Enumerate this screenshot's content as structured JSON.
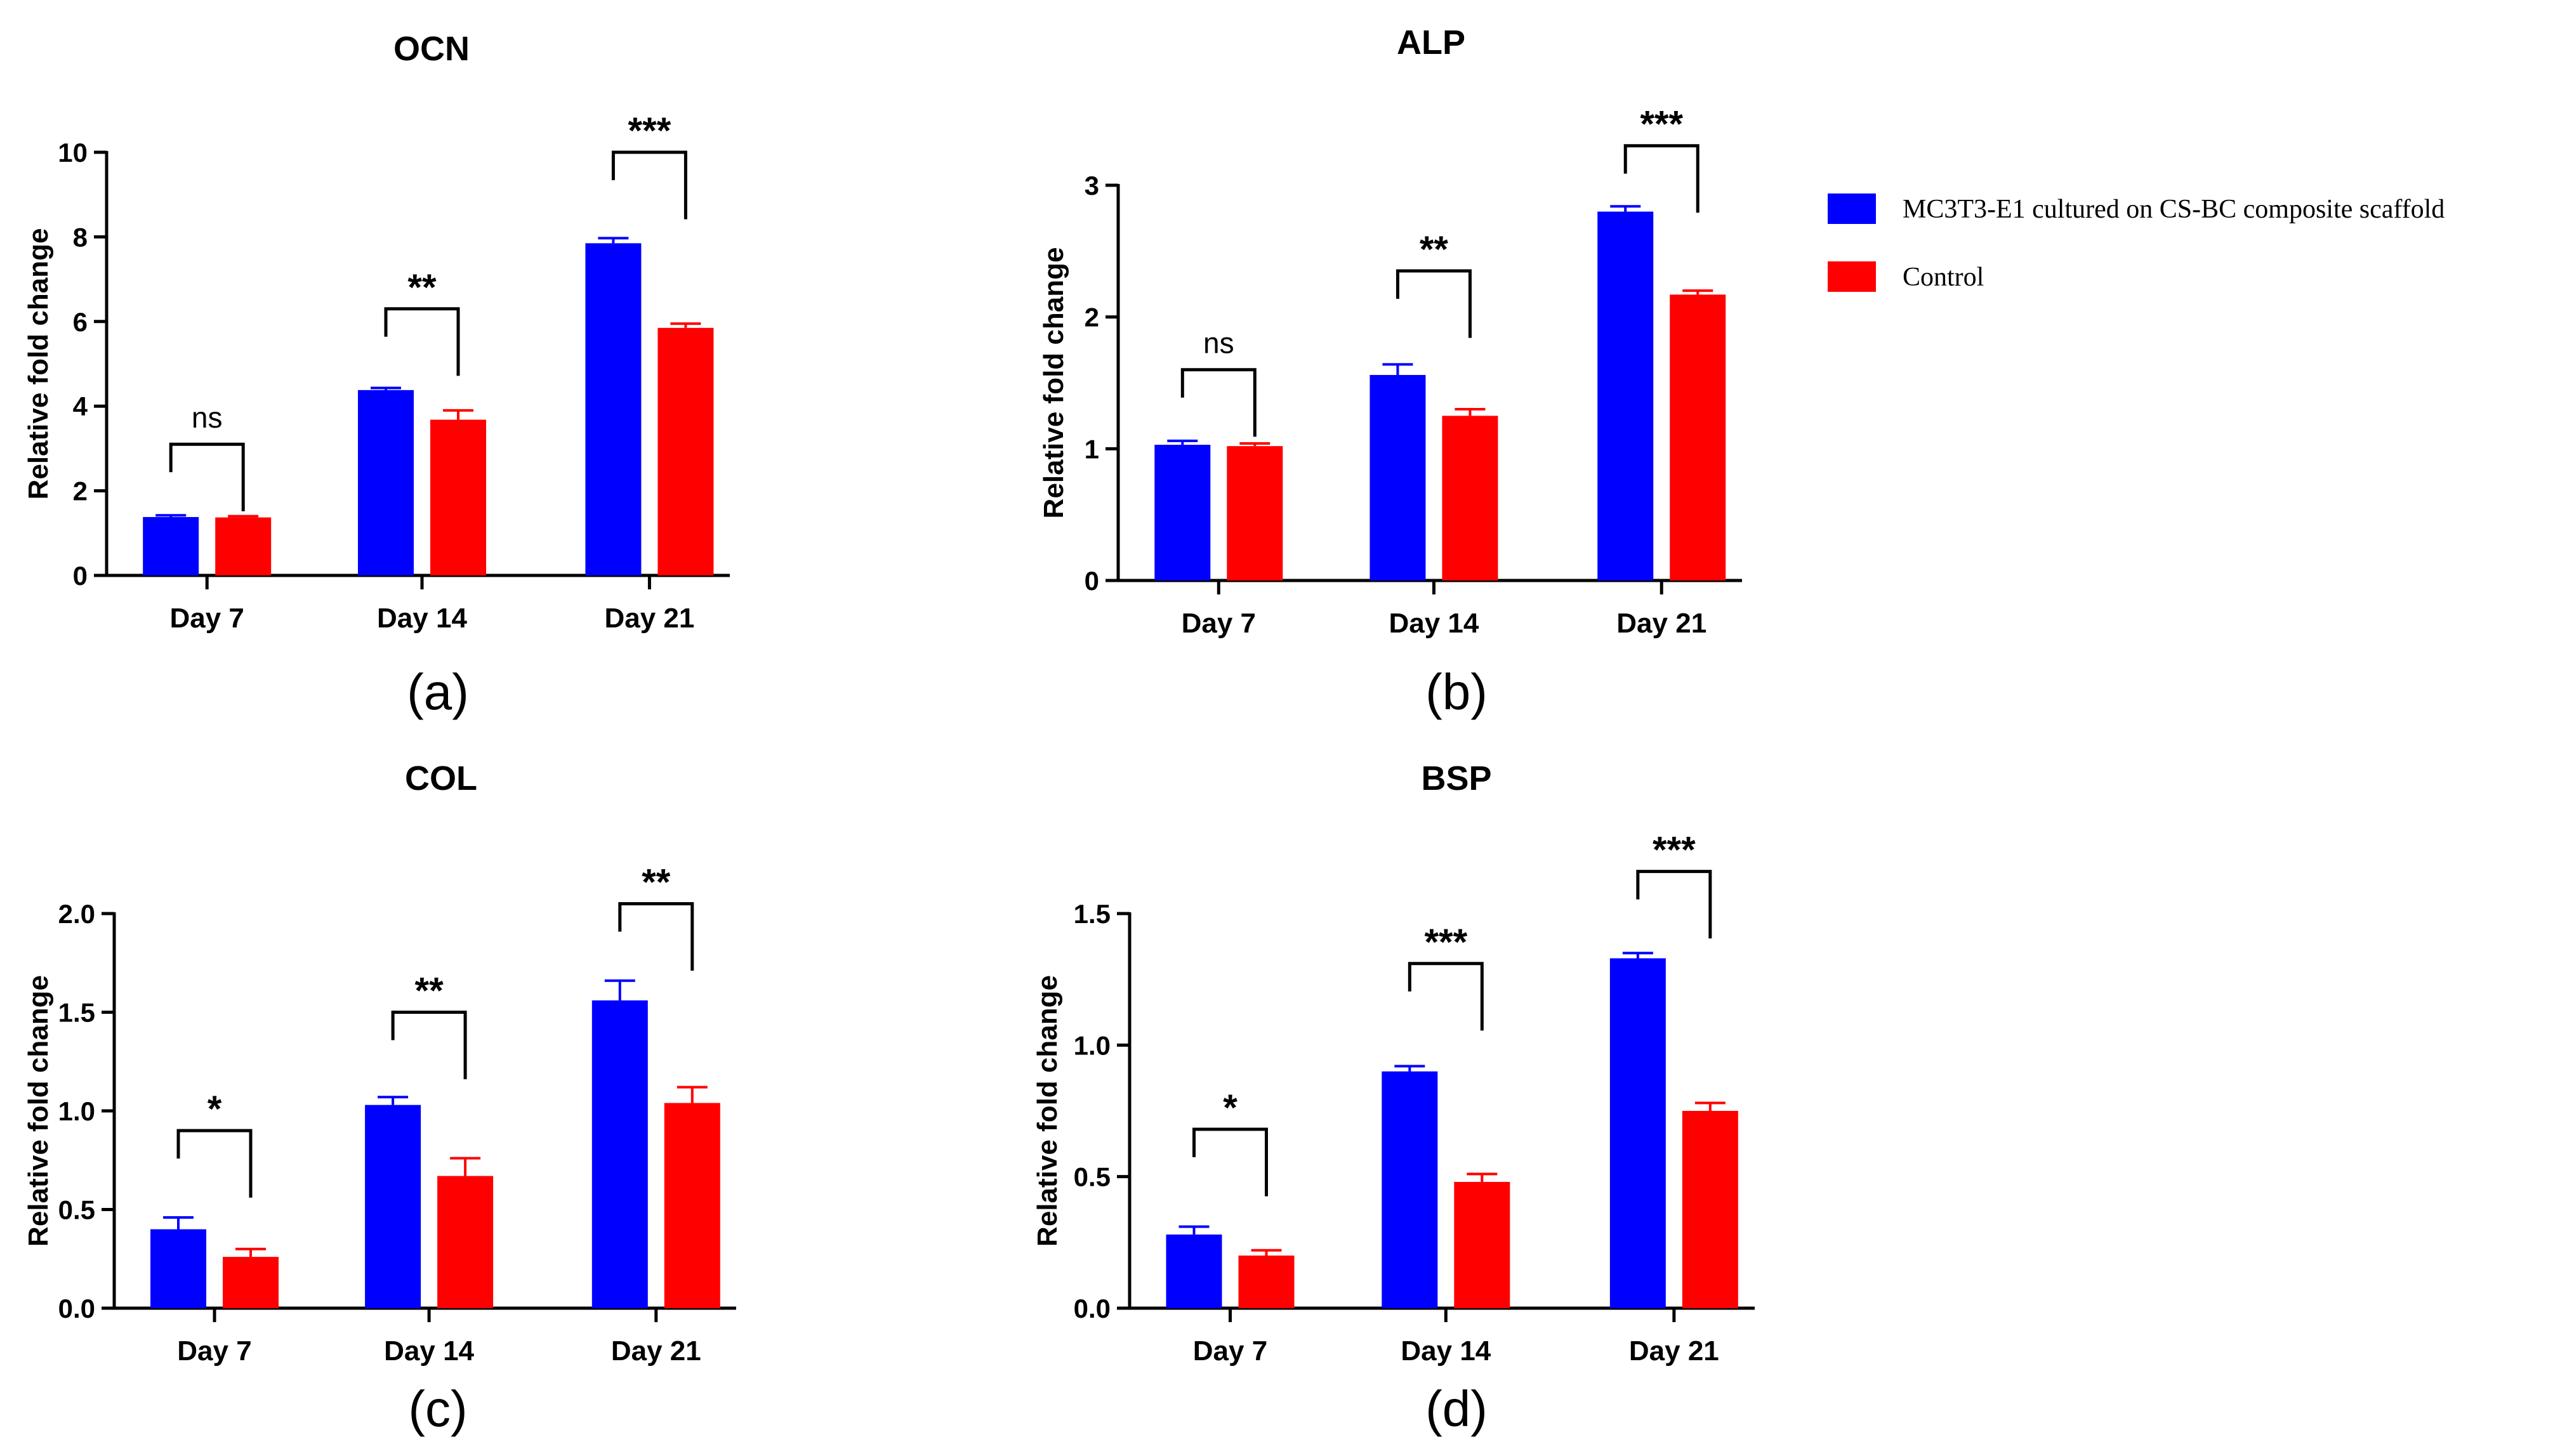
{
  "legend": {
    "items": [
      {
        "label": "MC3T3-E1 cultured on CS-BC composite scaffold",
        "color": "#0000FF"
      },
      {
        "label": "Control",
        "color": "#FF0000"
      }
    ]
  },
  "chart_data": [
    {
      "type": "bar",
      "title": "OCN",
      "panel_label": "(a)",
      "xlabel": "",
      "ylabel": "Relative fold change",
      "categories": [
        "Day 7",
        "Day 14",
        "Day 21"
      ],
      "ylim": [
        0,
        10
      ],
      "yticks": [
        0,
        2,
        4,
        6,
        8,
        10
      ],
      "ytick_labels": [
        "0",
        "2",
        "4",
        "6",
        "8",
        "10"
      ],
      "series": [
        {
          "values": [
            1.38,
            4.38,
            7.85
          ],
          "errors": [
            0.04,
            0.05,
            0.12
          ],
          "color": "#0000FF"
        },
        {
          "values": [
            1.37,
            3.68,
            5.85
          ],
          "errors": [
            0.03,
            0.22,
            0.1
          ],
          "color": "#FF0000"
        }
      ],
      "significance": [
        {
          "label": "ns",
          "y": 3.1
        },
        {
          "label": "**",
          "y": 6.3
        },
        {
          "label": "***",
          "y": 10.0
        }
      ]
    },
    {
      "type": "bar",
      "title": "ALP",
      "panel_label": "(b)",
      "xlabel": "",
      "ylabel": "Relative fold change",
      "categories": [
        "Day 7",
        "Day 14",
        "Day 21"
      ],
      "ylim": [
        0,
        3
      ],
      "yticks": [
        0,
        1,
        2,
        3
      ],
      "ytick_labels": [
        "0",
        "1",
        "2",
        "3"
      ],
      "series": [
        {
          "values": [
            1.03,
            1.56,
            2.8
          ],
          "errors": [
            0.03,
            0.08,
            0.04
          ],
          "color": "#0000FF"
        },
        {
          "values": [
            1.02,
            1.25,
            2.17
          ],
          "errors": [
            0.02,
            0.05,
            0.03
          ],
          "color": "#FF0000"
        }
      ],
      "significance": [
        {
          "label": "ns",
          "y": 1.6
        },
        {
          "label": "**",
          "y": 2.35
        },
        {
          "label": "***",
          "y": 3.3
        }
      ]
    },
    {
      "type": "bar",
      "title": "COL",
      "panel_label": "(c)",
      "xlabel": "",
      "ylabel": "Relative fold change",
      "categories": [
        "Day 7",
        "Day 14",
        "Day 21"
      ],
      "ylim": [
        0,
        2.0
      ],
      "yticks": [
        0,
        0.5,
        1.0,
        1.5,
        2.0
      ],
      "ytick_labels": [
        "0.0",
        "0.5",
        "1.0",
        "1.5",
        "2.0"
      ],
      "series": [
        {
          "values": [
            0.4,
            1.03,
            1.56
          ],
          "errors": [
            0.06,
            0.04,
            0.1
          ],
          "color": "#0000FF"
        },
        {
          "values": [
            0.26,
            0.67,
            1.04
          ],
          "errors": [
            0.04,
            0.09,
            0.08
          ],
          "color": "#FF0000"
        }
      ],
      "significance": [
        {
          "label": "*",
          "y": 0.9
        },
        {
          "label": "**",
          "y": 1.5
        },
        {
          "label": "**",
          "y": 2.05
        }
      ]
    },
    {
      "type": "bar",
      "title": "BSP",
      "panel_label": "(d)",
      "xlabel": "",
      "ylabel": "Relative fold change",
      "categories": [
        "Day 7",
        "Day 14",
        "Day 21"
      ],
      "ylim": [
        0,
        1.5
      ],
      "yticks": [
        0,
        0.5,
        1.0,
        1.5
      ],
      "ytick_labels": [
        "0.0",
        "0.5",
        "1.0",
        "1.5"
      ],
      "series": [
        {
          "values": [
            0.28,
            0.9,
            1.33
          ],
          "errors": [
            0.03,
            0.02,
            0.02
          ],
          "color": "#0000FF"
        },
        {
          "values": [
            0.2,
            0.48,
            0.75
          ],
          "errors": [
            0.02,
            0.03,
            0.03
          ],
          "color": "#FF0000"
        }
      ],
      "significance": [
        {
          "label": "*",
          "y": 0.68
        },
        {
          "label": "***",
          "y": 1.31
        },
        {
          "label": "***",
          "y": 1.66
        }
      ]
    }
  ]
}
